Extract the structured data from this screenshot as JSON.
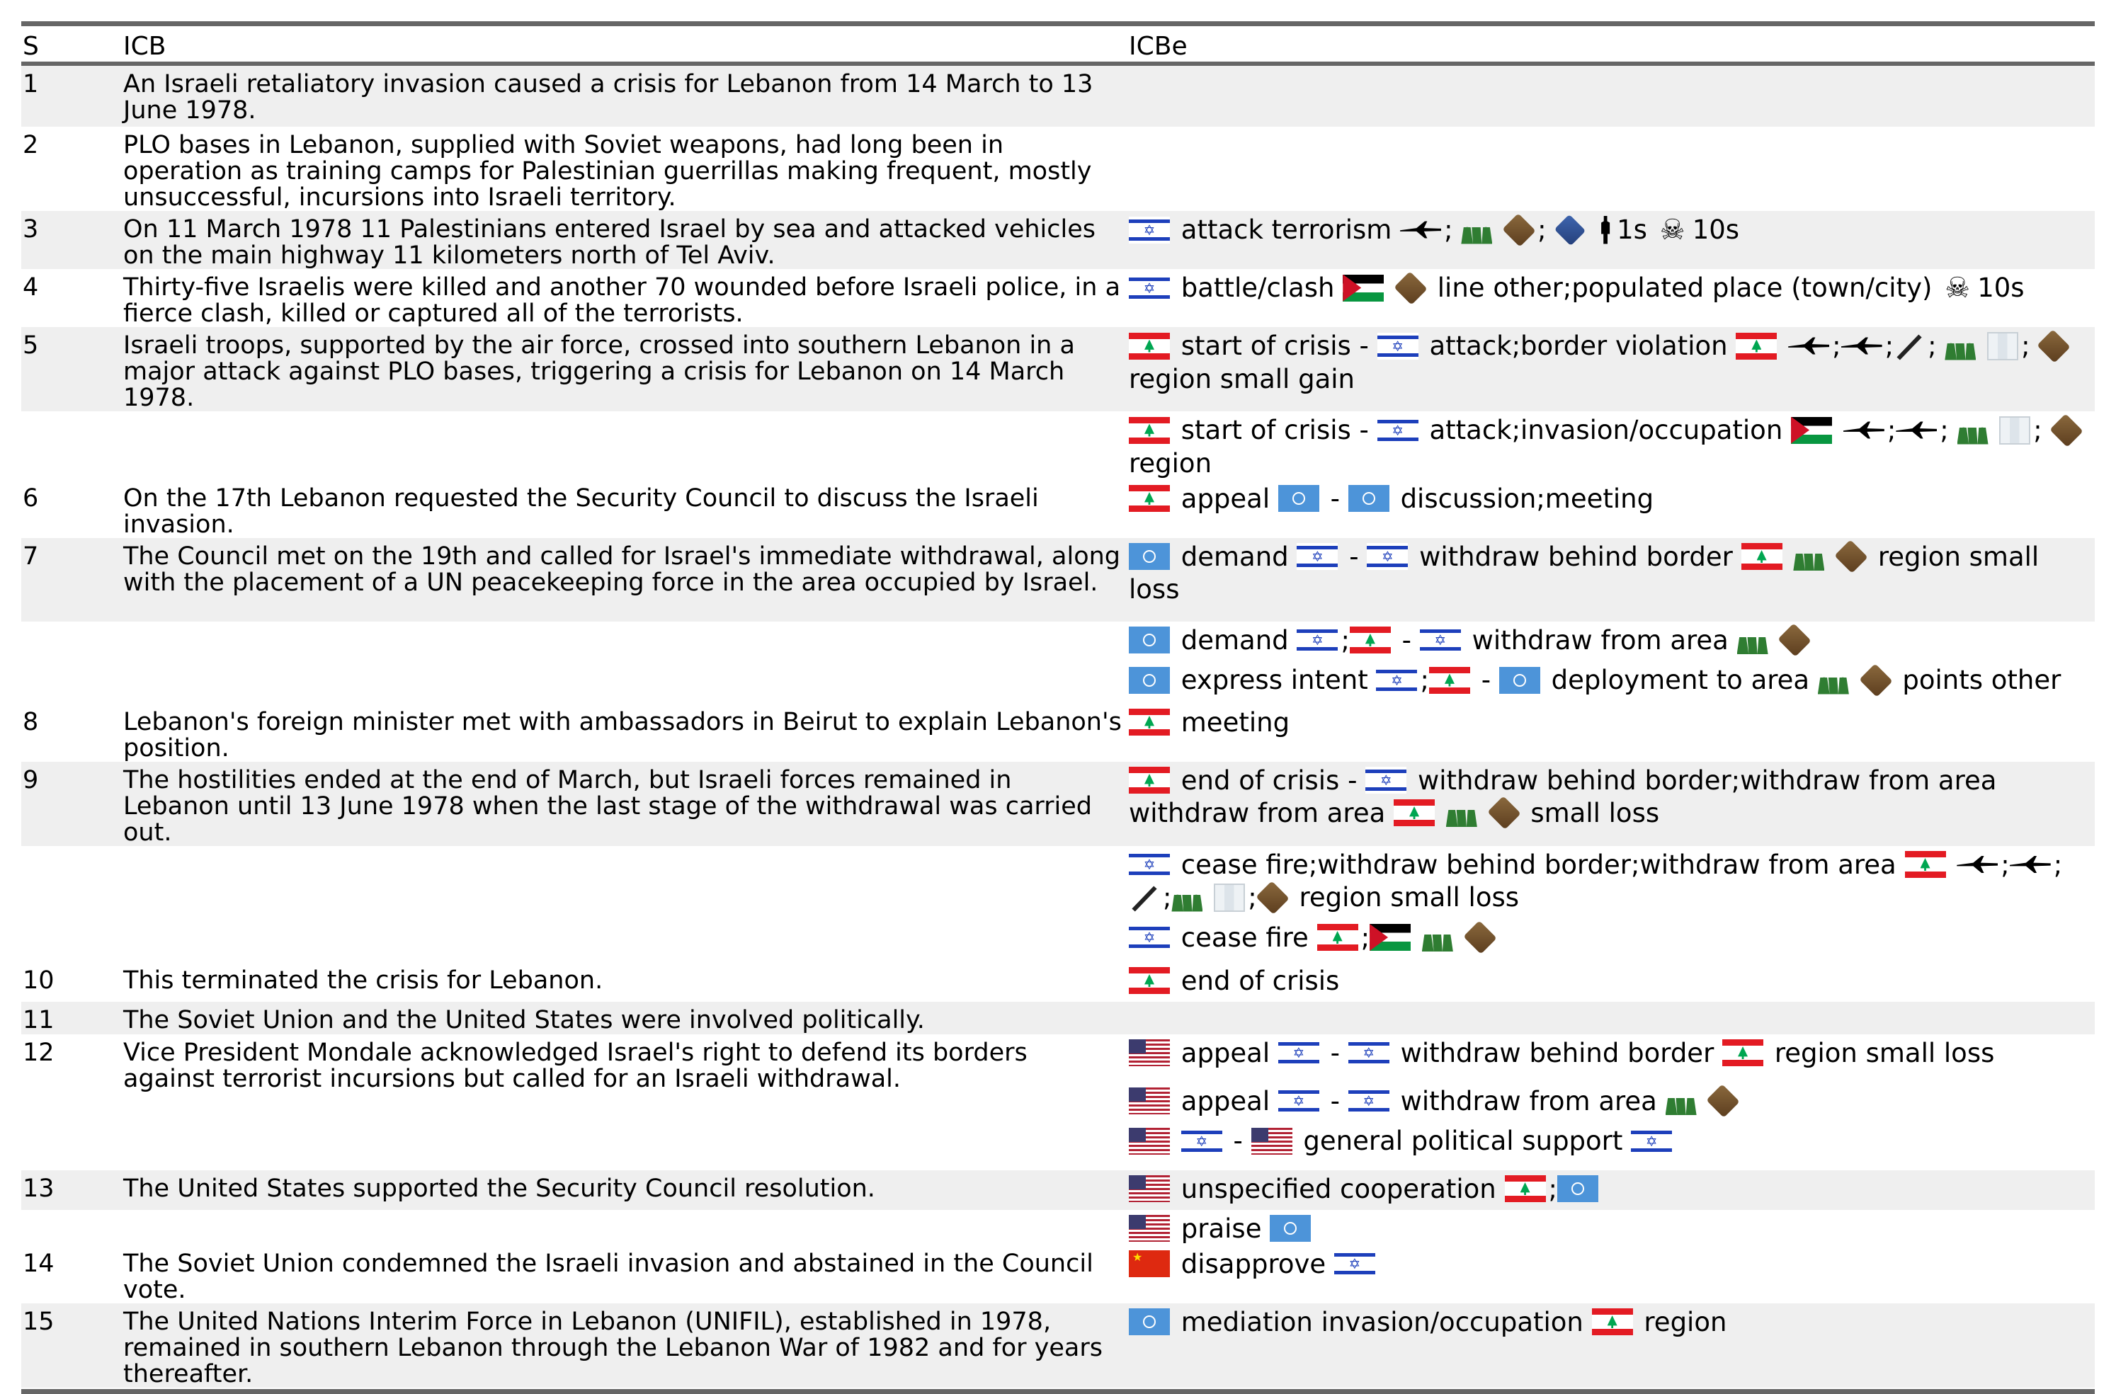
{
  "headers": {
    "s": "S",
    "icb": "ICB",
    "icbe": "ICBe"
  },
  "rows": [
    {
      "s": "1",
      "icb": "An Israeli retaliatory invasion caused a crisis for Lebanon from 14 March to 13 June 1978."
    },
    {
      "s": "2",
      "icb": "PLO bases in Lebanon, supplied with Soviet weapons, had long been in operation as training camps for Palestinian guerrillas making frequent, mostly unsuccessful, incursions into Israeli territory."
    },
    {
      "s": "3",
      "icb": "On 11 March 1978 11 Palestinians entered Israel by sea and attacked vehicles on the main highway 11 kilometers north of Tel Aviv.",
      "events": [
        {
          "t1": "attack terrorism",
          "t2": ";",
          "t3": ";",
          "t4": "1s",
          "t5": "10s"
        }
      ]
    },
    {
      "s": "4",
      "icb": "Thirty-five Israelis were killed and another 70 wounded before Israeli police, in a fierce clash, killed or captured all of the terrorists.",
      "events": [
        {
          "t1": "battle/clash",
          "t2": "line other;populated place (town/city)",
          "t3": "10s"
        }
      ]
    },
    {
      "s": "5",
      "icb": "Israeli troops, supported by the air force, crossed into southern Lebanon in a major attack against PLO bases, triggering a crisis for Lebanon on 14 March 1978.",
      "events": [
        {
          "t1": "start of crisis -",
          "t2": "attack;border violation",
          "t3": ";",
          "t4": ";",
          "t5": ";",
          "t6": ";",
          "t7": "region small gain"
        }
      ]
    },
    {
      "s": "",
      "icb": "",
      "events": [
        {
          "t1": "start of crisis -",
          "t2": "attack;invasion/occupation",
          "t3": ";",
          "t4": ";",
          "t5": ";",
          "t6": "region"
        }
      ]
    },
    {
      "s": "6",
      "icb": "On the 17th Lebanon requested the Security Council to discuss the Israeli invasion.",
      "events": [
        {
          "t1": "appeal",
          "t2": "-",
          "t3": "discussion;meeting"
        }
      ]
    },
    {
      "s": "7",
      "icb": "The Council met on the 19th and called for Israel's immediate withdrawal, along with the placement of a UN peacekeeping force in the area occupied by Israel.",
      "events": [
        {
          "t1": "demand",
          "t2": "-",
          "t3": "withdraw behind border",
          "t4": "region small loss"
        }
      ]
    },
    {
      "s": "",
      "icb": "",
      "events": [
        {
          "t1": "demand",
          "t2": ";",
          "t3": "-",
          "t4": "withdraw from area"
        },
        {
          "t1": "express intent",
          "t2": ";",
          "t3": "-",
          "t4": "deployment to area",
          "t5": "points other"
        }
      ]
    },
    {
      "s": "8",
      "icb": "Lebanon's foreign minister met with ambassadors in Beirut to explain Lebanon's position.",
      "events": [
        {
          "t1": "meeting"
        }
      ]
    },
    {
      "s": "9",
      "icb": "The hostilities ended at the end of March, but Israeli forces remained in Lebanon until 13 June 1978 when the last stage of the withdrawal was carried out.",
      "events": [
        {
          "t1": "end of crisis -",
          "t2": "withdraw behind border;withdraw from area withdraw from area",
          "t3": "small loss"
        }
      ]
    },
    {
      "s": "",
      "icb": "",
      "events": [
        {
          "t1": "cease fire;withdraw behind border;withdraw from area",
          "t2": ";",
          "t3": ";",
          "t4": ";",
          "t5": ";",
          "t6": "region small loss"
        },
        {
          "t1": "cease fire",
          "t2": ";"
        }
      ]
    },
    {
      "s": "10",
      "icb": "This terminated the crisis for Lebanon.",
      "events": [
        {
          "t1": "end of crisis"
        }
      ]
    },
    {
      "s": "11",
      "icb": "The Soviet Union and the United States were involved politically."
    },
    {
      "s": "12",
      "icb": "Vice President Mondale acknowledged Israel's right to defend its borders against terrorist incursions but called for an Israeli withdrawal.",
      "events": [
        {
          "t1": "appeal",
          "t2": "-",
          "t3": "withdraw behind border",
          "t4": "region small loss"
        },
        {
          "t1": "appeal",
          "t2": "-",
          "t3": "withdraw from area"
        },
        {
          "t1": "-",
          "t2": "general political support"
        }
      ]
    },
    {
      "s": "13",
      "icb": "The United States supported the Security Council resolution.",
      "events": [
        {
          "t1": "unspecified cooperation",
          "t2": ";"
        },
        {
          "t1": "praise"
        }
      ]
    },
    {
      "s": "14",
      "icb": "The Soviet Union condemned the Israeli invasion and abstained in the Council vote.",
      "events": [
        {
          "t1": "disapprove"
        }
      ]
    },
    {
      "s": "15",
      "icb": "The United Nations Interim Force in Lebanon (UNIFIL), established in 1978, remained in southern Lebanon through the Lebanon War of 1982 and for years thereafter.",
      "events": [
        {
          "t1": "mediation invasion/occupation",
          "t2": "region"
        }
      ]
    }
  ],
  "icons": [
    "flag-israel",
    "flag-lebanon",
    "flag-united-nations",
    "flag-palestine",
    "flag-usa",
    "flag-china",
    "soldiers-icon",
    "land-icon",
    "sea-icon",
    "aircraft-icon",
    "missile-icon",
    "map-icon",
    "person-icon",
    "skull-icon"
  ]
}
